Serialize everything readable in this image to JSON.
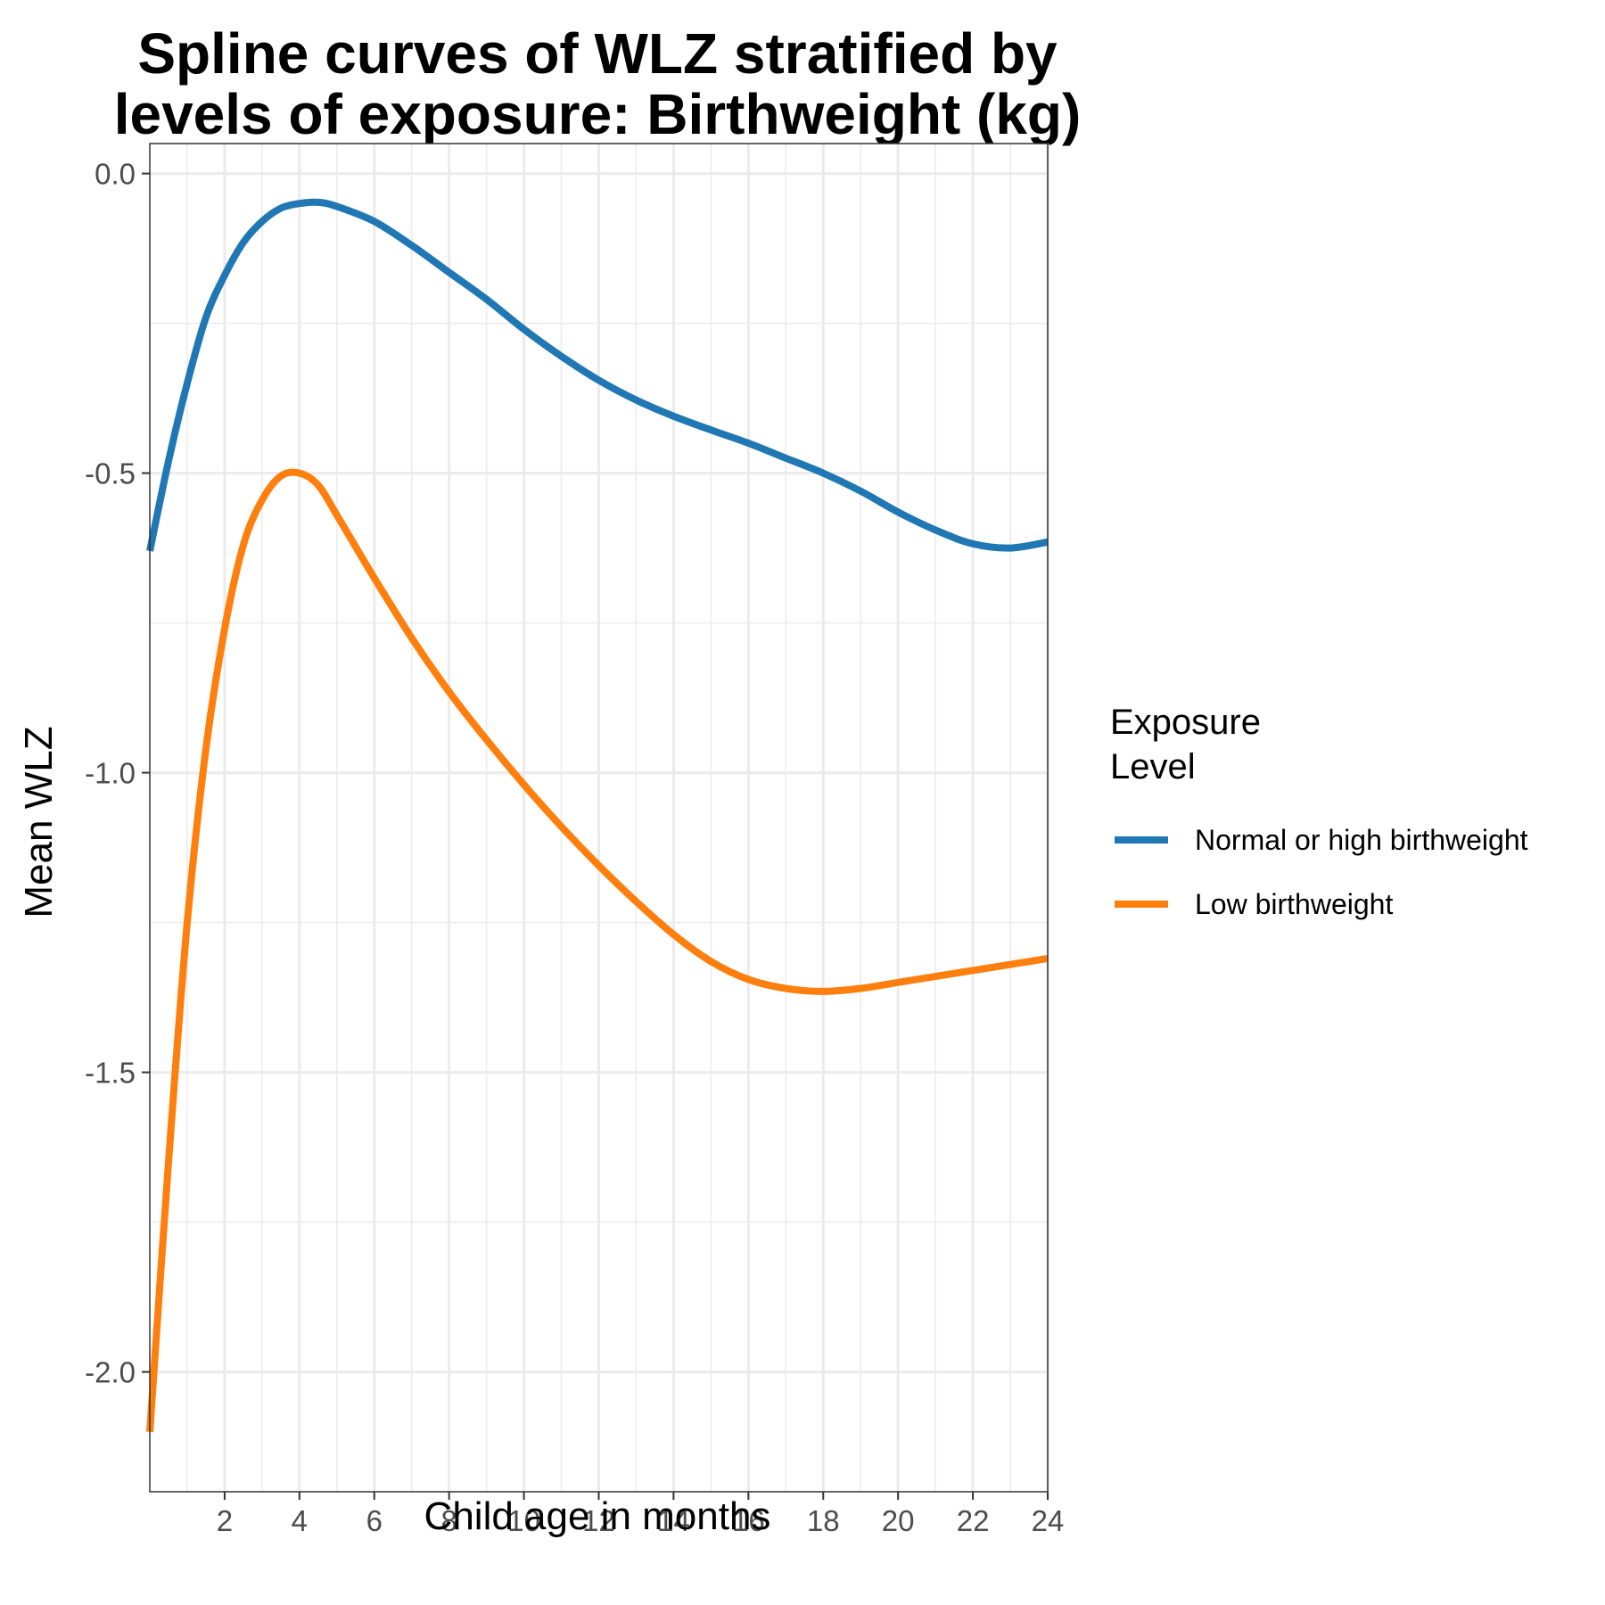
{
  "chart_data": {
    "type": "line",
    "title_lines": [
      "Spline curves of WLZ stratified by",
      "levels of exposure: Birthweight (kg)"
    ],
    "xlabel": "Child age in months",
    "ylabel": "Mean WLZ",
    "xlim": [
      0,
      24
    ],
    "ylim": [
      -2.2,
      0.05
    ],
    "x_ticks": [
      2,
      4,
      6,
      8,
      10,
      12,
      14,
      16,
      18,
      20,
      22,
      24
    ],
    "x_tick_labels": [
      "2",
      "4",
      "6",
      "8",
      "10",
      "12",
      "14",
      "16",
      "18",
      "20",
      "22",
      "24"
    ],
    "y_ticks": [
      0.0,
      -0.5,
      -1.0,
      -1.5,
      -2.0
    ],
    "y_tick_labels": [
      "0.0",
      "-0.5",
      "-1.0",
      "-1.5",
      "-2.0"
    ],
    "grid": true,
    "legend": {
      "title_lines": [
        "Exposure",
        "Level"
      ],
      "placement": "right"
    },
    "series": [
      {
        "name": "Normal or high birthweight",
        "color": "#1f77b4",
        "x": [
          0,
          0.5,
          1,
          1.5,
          2,
          2.5,
          3,
          3.5,
          4,
          4.5,
          5,
          6,
          7,
          8,
          9,
          10,
          11,
          12,
          13,
          14,
          15,
          16,
          17,
          18,
          19,
          20,
          21,
          22,
          23,
          24
        ],
        "y": [
          -0.63,
          -0.48,
          -0.35,
          -0.24,
          -0.17,
          -0.115,
          -0.08,
          -0.058,
          -0.05,
          -0.048,
          -0.055,
          -0.08,
          -0.12,
          -0.165,
          -0.21,
          -0.26,
          -0.305,
          -0.345,
          -0.378,
          -0.405,
          -0.428,
          -0.45,
          -0.475,
          -0.5,
          -0.53,
          -0.565,
          -0.595,
          -0.618,
          -0.625,
          -0.615
        ]
      },
      {
        "name": "Low birthweight",
        "color": "#ff7f0e",
        "x": [
          0,
          0.5,
          1,
          1.5,
          2,
          2.5,
          3,
          3.5,
          4,
          4.5,
          5,
          6,
          7,
          8,
          9,
          10,
          11,
          12,
          13,
          14,
          15,
          16,
          17,
          18,
          19,
          20,
          21,
          22,
          23,
          24
        ],
        "y": [
          -2.1,
          -1.65,
          -1.25,
          -0.96,
          -0.76,
          -0.62,
          -0.545,
          -0.505,
          -0.5,
          -0.52,
          -0.57,
          -0.675,
          -0.775,
          -0.865,
          -0.945,
          -1.02,
          -1.09,
          -1.155,
          -1.215,
          -1.27,
          -1.315,
          -1.345,
          -1.36,
          -1.365,
          -1.36,
          -1.35,
          -1.34,
          -1.33,
          -1.32,
          -1.31
        ]
      }
    ]
  }
}
